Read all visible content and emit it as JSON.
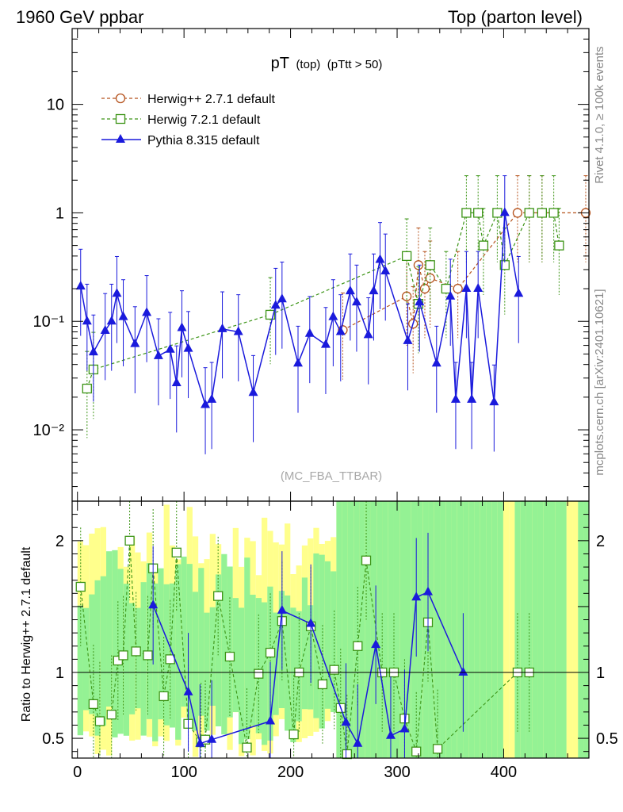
{
  "header": {
    "left": "1960 GeV ppbar",
    "right": "Top (parton level)"
  },
  "side_labels": {
    "rivet": "Rivet 4.1.0, ≥ 100k events",
    "mcplots": "mcplots.cern.ch [arXiv:2401.10621]"
  },
  "watermark": "(MC_FBA_TTBAR)",
  "chart_data": {
    "type": "line",
    "title_main": "pT",
    "title_sub": "(top)",
    "title_cond": "(pTtt > 50)",
    "xlabel": "",
    "ylabel_ratio": "Ratio to Herwig++ 2.7.1 default",
    "xlim": [
      -5,
      480
    ],
    "ylim": [
      0.0022,
      50
    ],
    "ratio_ylim": [
      0.35,
      2.3
    ],
    "x_ticks": [
      "0",
      "100",
      "200",
      "300",
      "400"
    ],
    "x_tick_values": [
      0,
      100,
      200,
      300,
      400
    ],
    "y_ticks": [
      "10",
      "1",
      "10⁻¹",
      "10⁻²"
    ],
    "y_tick_values": [
      10,
      1,
      0.1,
      0.01
    ],
    "ratio_ticks": [
      "2",
      "1",
      "0.5"
    ],
    "ratio_tick_values": [
      2,
      1,
      0.5
    ],
    "legend": [
      "Herwig++ 2.7.1 default",
      "Herwig 7.2.1 default",
      "Pythia 8.315 default"
    ],
    "series": [
      {
        "name": "Herwig++ 2.7.1 default",
        "color": "#b5521c",
        "marker": "circle",
        "points": [
          [
            249,
            0.083
          ],
          [
            309,
            0.17
          ],
          [
            315,
            0.095
          ],
          [
            320,
            0.33
          ],
          [
            326,
            0.2
          ],
          [
            331,
            0.25
          ],
          [
            357,
            0.2
          ],
          [
            413,
            1.0
          ],
          [
            424,
            1.0
          ],
          [
            436,
            1.0
          ],
          [
            477,
            1.0
          ]
        ]
      },
      {
        "name": "Herwig 7.2.1 default",
        "color": "#3c9416",
        "marker": "square",
        "points": [
          [
            9,
            0.024
          ],
          [
            15,
            0.036
          ],
          [
            181,
            0.115
          ],
          [
            309,
            0.4
          ],
          [
            320,
            0.145
          ],
          [
            331,
            0.33
          ],
          [
            346,
            0.2
          ],
          [
            365,
            1.0
          ],
          [
            376,
            1.0
          ],
          [
            381,
            0.5
          ],
          [
            394,
            1.0
          ],
          [
            401,
            0.33
          ],
          [
            424,
            1.0
          ],
          [
            436,
            1.0
          ],
          [
            447,
            1.0
          ],
          [
            452,
            0.5
          ]
        ]
      },
      {
        "name": "Pythia 8.315 default",
        "color": "#1a1adc",
        "marker": "triangle",
        "points": [
          [
            3,
            0.21
          ],
          [
            9,
            0.1
          ],
          [
            15,
            0.052
          ],
          [
            26,
            0.082
          ],
          [
            32,
            0.1
          ],
          [
            37,
            0.18
          ],
          [
            43,
            0.11
          ],
          [
            54,
            0.062
          ],
          [
            65,
            0.12
          ],
          [
            76,
            0.048
          ],
          [
            87,
            0.055
          ],
          [
            93,
            0.027
          ],
          [
            98,
            0.087
          ],
          [
            104,
            0.056
          ],
          [
            120,
            0.017
          ],
          [
            126,
            0.019
          ],
          [
            136,
            0.085
          ],
          [
            151,
            0.08
          ],
          [
            165,
            0.022
          ],
          [
            186,
            0.14
          ],
          [
            192,
            0.16
          ],
          [
            207,
            0.041
          ],
          [
            218,
            0.077
          ],
          [
            233,
            0.061
          ],
          [
            240,
            0.11
          ],
          [
            247,
            0.08
          ],
          [
            256,
            0.19
          ],
          [
            262,
            0.15
          ],
          [
            273,
            0.075
          ],
          [
            278,
            0.19
          ],
          [
            284,
            0.37
          ],
          [
            289,
            0.29
          ],
          [
            310,
            0.066
          ],
          [
            321,
            0.15
          ],
          [
            337,
            0.041
          ],
          [
            350,
            0.17
          ],
          [
            355,
            0.019
          ],
          [
            365,
            0.2
          ],
          [
            370,
            0.019
          ],
          [
            376,
            0.2
          ],
          [
            391,
            0.018
          ],
          [
            401,
            1.0
          ],
          [
            414,
            0.18
          ]
        ]
      }
    ],
    "ratio_series": [
      {
        "name": "Herwig 7.2.1 default",
        "points": [
          [
            3,
            1.65
          ],
          [
            15,
            0.76
          ],
          [
            21,
            0.63
          ],
          [
            32,
            0.68
          ],
          [
            38,
            1.09
          ],
          [
            43,
            1.13
          ],
          [
            49,
            2.0
          ],
          [
            55,
            1.16
          ],
          [
            66,
            1.13
          ],
          [
            71,
            1.79
          ],
          [
            81,
            0.82
          ],
          [
            87,
            1.1
          ],
          [
            93,
            1.91
          ],
          [
            104,
            0.61
          ],
          [
            116,
            0.47
          ],
          [
            120,
            0.49
          ],
          [
            132,
            1.58
          ],
          [
            143,
            1.12
          ],
          [
            159,
            0.43
          ],
          [
            170,
            0.99
          ],
          [
            181,
            1.15
          ],
          [
            192,
            1.39
          ],
          [
            203,
            0.53
          ],
          [
            208,
            1.0
          ],
          [
            219,
            1.35
          ],
          [
            230,
            0.91
          ],
          [
            241,
            1.02
          ],
          [
            247,
            0.73
          ],
          [
            253,
            0.38
          ],
          [
            263,
            1.2
          ],
          [
            271,
            1.85
          ],
          [
            286,
            1.0
          ],
          [
            297,
            1.0
          ],
          [
            307,
            0.65
          ],
          [
            318,
            0.4
          ],
          [
            329,
            1.38
          ],
          [
            338,
            0.42
          ],
          [
            413,
            1.0
          ],
          [
            424,
            1.0
          ]
        ]
      },
      {
        "name": "Pythia 8.315 default",
        "points": [
          [
            71,
            1.51
          ],
          [
            104,
            0.85
          ],
          [
            115,
            0.46
          ],
          [
            126,
            0.49
          ],
          [
            181,
            0.63
          ],
          [
            192,
            1.47
          ],
          [
            219,
            1.37
          ],
          [
            252,
            0.62
          ],
          [
            263,
            0.46
          ],
          [
            280,
            1.21
          ],
          [
            294,
            0.52
          ],
          [
            307,
            0.57
          ],
          [
            318,
            1.57
          ],
          [
            329,
            1.61
          ],
          [
            362,
            1.0
          ]
        ]
      }
    ]
  }
}
